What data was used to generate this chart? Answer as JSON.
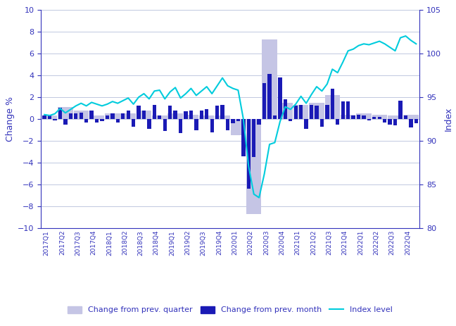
{
  "quarters": [
    "2017Q1",
    "2017Q2",
    "2017Q3",
    "2017Q4",
    "2018Q1",
    "2018Q2",
    "2018Q3",
    "2018Q4",
    "2019Q1",
    "2019Q2",
    "2019Q3",
    "2019Q4",
    "2020Q1",
    "2020Q2",
    "2020Q3",
    "2020Q4",
    "2021Q1",
    "2021Q2",
    "2021Q3",
    "2021Q4",
    "2022Q1",
    "2022Q2",
    "2022Q3",
    "2022Q4"
  ],
  "quarter_change": [
    0.3,
    1.1,
    0.8,
    0.3,
    0.5,
    0.5,
    0.8,
    0.3,
    0.5,
    0.4,
    0.3,
    0.3,
    -1.5,
    -8.7,
    7.3,
    1.5,
    1.3,
    1.5,
    2.2,
    0.4,
    0.5,
    0.4,
    0.3,
    0.4
  ],
  "monthly_changes": [
    0.3,
    0.4,
    -0.1,
    1.0,
    -0.5,
    0.5,
    0.5,
    0.6,
    -0.3,
    0.8,
    -0.3,
    -0.2,
    0.3,
    0.5,
    -0.3,
    0.5,
    0.8,
    -0.7,
    1.2,
    0.8,
    -0.9,
    1.3,
    0.3,
    -1.1,
    1.2,
    0.8,
    -1.3,
    0.7,
    0.8,
    -1.0,
    0.8,
    0.9,
    -1.2,
    1.2,
    1.3,
    -1.0,
    -0.4,
    -0.2,
    -3.4,
    -6.4,
    -3.5,
    -0.5,
    3.3,
    4.1,
    0.3,
    3.8,
    1.8,
    -0.2,
    1.2,
    1.3,
    -0.9,
    1.3,
    1.2,
    -0.7,
    1.3,
    2.8,
    -0.5,
    1.6,
    1.6,
    0.3,
    0.4,
    0.3,
    -0.1,
    0.2,
    0.2,
    -0.3,
    -0.5,
    -0.6,
    1.7,
    0.3,
    -0.8,
    -0.4
  ],
  "index_values": [
    93.0,
    92.9,
    93.1,
    93.7,
    93.2,
    93.6,
    94.0,
    94.3,
    94.0,
    94.4,
    94.2,
    94.0,
    94.2,
    94.5,
    94.3,
    94.6,
    94.9,
    94.2,
    95.0,
    95.4,
    94.8,
    95.7,
    95.8,
    94.8,
    95.6,
    96.1,
    94.9,
    95.4,
    96.0,
    95.2,
    95.7,
    96.2,
    95.4,
    96.3,
    97.2,
    96.3,
    96.0,
    95.8,
    92.5,
    87.1,
    83.9,
    83.5,
    86.2,
    89.6,
    89.8,
    92.2,
    93.9,
    93.6,
    94.2,
    95.1,
    94.3,
    95.3,
    96.2,
    95.7,
    96.5,
    98.2,
    97.8,
    99.0,
    100.3,
    100.5,
    100.9,
    101.1,
    101.0,
    101.2,
    101.4,
    101.1,
    100.7,
    100.3,
    101.8,
    102.0,
    101.5,
    101.1
  ],
  "bar_monthly_color": "#1a1ab5",
  "bar_quarter_color": "#c5c5e5",
  "line_color": "#00ccdd",
  "left_axis_color": "#3333bb",
  "right_axis_color": "#3333bb",
  "background_color": "#ffffff",
  "grid_color": "#c0c8e0",
  "ylim_left": [
    -10,
    10
  ],
  "ylim_right": [
    80,
    105
  ],
  "ylabel_left": "Change %",
  "ylabel_right": "Index",
  "legend_labels": [
    "Change from prev. quarter",
    "Change from prev. month",
    "Index level"
  ]
}
